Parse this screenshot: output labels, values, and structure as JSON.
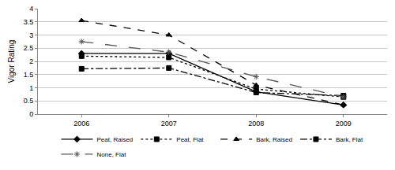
{
  "chart_data": {
    "type": "line",
    "y_label": "Vigor Rating",
    "categories": [
      "2006",
      "2007",
      "2008",
      "2009"
    ],
    "series": [
      {
        "name": "Peat, Raised",
        "color": "#000000",
        "marker": "diamond",
        "line_style": "solid",
        "values": [
          2.3,
          2.3,
          0.85,
          0.35
        ]
      },
      {
        "name": "Peat, Flat",
        "color": "#000000",
        "marker": "square",
        "line_style": "dotted",
        "values": [
          2.2,
          2.15,
          0.95,
          0.65
        ]
      },
      {
        "name": "Bark, Raised",
        "color": "#000000",
        "marker": "triangle",
        "line_style": "dashed",
        "values": [
          3.55,
          3.0,
          1.1,
          0.35
        ]
      },
      {
        "name": "Bark, Flat",
        "color": "#000000",
        "marker": "square",
        "line_style": "dashdot",
        "values": [
          1.72,
          1.75,
          0.82,
          0.7
        ]
      },
      {
        "name": "None, Flat",
        "color": "#555555",
        "marker": "asterisk",
        "line_style": "longdash",
        "values": [
          2.75,
          2.35,
          1.42,
          0.65
        ]
      }
    ],
    "ylim": [
      0,
      4
    ],
    "yticks": [
      0,
      0.5,
      1,
      1.5,
      2,
      2.5,
      3,
      3.5,
      4
    ],
    "grid": true,
    "legend": "bottom"
  }
}
